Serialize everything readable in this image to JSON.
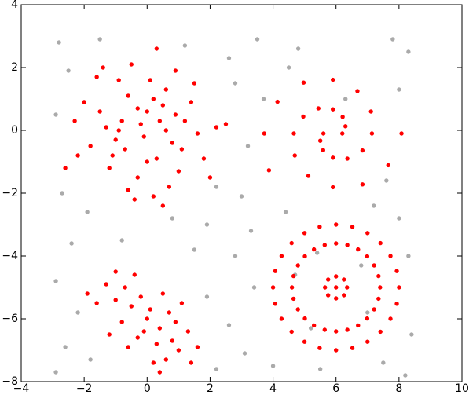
{
  "chart_data": {
    "type": "scatter",
    "xlim": [
      -4,
      10
    ],
    "xticks": [
      {
        "value": -4,
        "label": "−4"
      },
      {
        "value": -2,
        "label": "−2"
      },
      0,
      2,
      4,
      6,
      8,
      10
    ],
    "ylim": [
      -8,
      4
    ],
    "yticks": [
      {
        "value": -8,
        "label": "−8"
      },
      {
        "value": -6,
        "label": "−6"
      },
      {
        "value": -4,
        "label": "−4"
      },
      {
        "value": -2,
        "label": "−2"
      },
      0,
      2,
      4
    ],
    "series": [
      {
        "color": "#aaaaaa",
        "x": [
          -2.8,
          -1.5,
          1.2,
          3.5,
          4.8,
          7.8,
          8.3,
          -2.5,
          2.8,
          3.2,
          3.0,
          2.2,
          -2.7,
          -1.9,
          0.8,
          1.9,
          3.3,
          4.4,
          7.2,
          8.0,
          -2.4,
          -0.8,
          1.5,
          2.8,
          3.4,
          -2.9,
          -2.2,
          -2.6,
          -1.8,
          -2.9,
          1.9,
          2.6,
          2.2,
          3.1,
          4.0,
          5.5,
          7.5,
          8.2,
          8.4,
          8.3,
          4.7,
          5.4,
          6.8,
          7.0,
          5.2,
          3.7,
          4.5,
          8.0,
          7.6,
          6.3,
          -2.9,
          2.6
        ],
        "y": [
          2.8,
          2.9,
          2.7,
          2.9,
          2.6,
          2.9,
          2.5,
          1.9,
          1.5,
          -0.5,
          -2.1,
          -1.8,
          -2.0,
          -2.6,
          -2.8,
          -3.0,
          -3.2,
          -2.6,
          -2.4,
          -2.8,
          -3.6,
          -3.5,
          -3.8,
          -4.0,
          -5.0,
          -4.8,
          -5.8,
          -6.9,
          -7.3,
          -7.7,
          -5.3,
          -6.2,
          -7.6,
          -7.1,
          -7.5,
          -7.6,
          -7.4,
          -7.8,
          -6.5,
          -4.0,
          -4.6,
          -3.9,
          -4.3,
          -5.8,
          -6.3,
          1.0,
          2.0,
          1.3,
          -1.6,
          1.0,
          0.5,
          2.3
        ]
      },
      {
        "color": "#ff0000",
        "x": [
          -0.2,
          0.5,
          -1.0,
          0.3,
          -0.6,
          1.2,
          -1.5,
          0.1,
          -0.3,
          0.8,
          -1.8,
          1.6,
          -0.9,
          0.6,
          -1.2,
          0.2,
          1.0,
          -2.3,
          2.2,
          -0.5,
          0.4,
          -0.7,
          0.0,
          -1.3,
          1.4,
          0.7,
          -0.4,
          -2.6,
          2.5,
          -1.6,
          0.9,
          1.8,
          -2.0,
          0.3,
          -0.1,
          0.6,
          -0.8,
          0.2,
          -0.3,
          1.1,
          -1.1,
          0.0,
          -0.6,
          1.5,
          -2.2,
          2.0,
          -1.4,
          0.5,
          -0.9,
          0.9,
          0,
          -0.5,
          0.4,
          -1.0,
          0.8,
          -1.3,
          1.0,
          -0.2,
          0.3,
          -0.8,
          0.7,
          -1.6,
          1.3,
          -0.4,
          0.2,
          -1.2,
          1.1,
          -0.1,
          0.5,
          -0.7,
          0.6,
          -1.9,
          1.6,
          0.1,
          -0.3,
          0.9,
          -1.0,
          0.4,
          -0.6,
          1.4,
          6.2,
          6.3,
          6.21,
          5.9,
          5.44,
          4.96,
          4.66,
          4.69,
          5.12,
          5.9,
          6.84,
          7.66,
          8.08,
          5.6,
          5.5,
          5.59,
          5.9,
          6.36,
          6.84,
          7.14,
          7.11,
          6.68,
          5.9,
          4.97,
          4.14,
          3.72,
          3.87,
          8,
          7.93,
          7.73,
          7.41,
          7,
          6.52,
          6,
          5.48,
          5,
          4.59,
          4.27,
          4.07,
          4,
          4.07,
          4.27,
          4.59,
          5,
          5.48,
          6,
          6.52,
          7,
          7.41,
          7.73,
          7.93,
          7.4,
          7.35,
          7.21,
          6.99,
          6.7,
          6.36,
          6,
          5.64,
          5.3,
          5.01,
          4.79,
          4.65,
          4.6,
          4.65,
          4.79,
          5.01,
          5.3,
          5.64,
          6,
          6.36,
          6.7,
          6.99,
          7.21,
          7.35,
          6.35,
          6.25,
          6,
          5.75,
          5.65,
          5.75,
          6,
          6.25,
          6
        ],
        "y": [
          0.2,
          0.8,
          -0.3,
          -0.9,
          1.1,
          0.3,
          0.6,
          1.6,
          -1.5,
          -0.4,
          -0.5,
          -0.1,
          1.6,
          1.3,
          -1.2,
          -2.1,
          -1.3,
          0.3,
          0.1,
          2.1,
          0.3,
          -0.6,
          0.6,
          0.1,
          0.9,
          -1.8,
          -2.2,
          -1.2,
          0.2,
          1.7,
          1.9,
          -0.9,
          0.9,
          2.6,
          -0.2,
          0.0,
          0.3,
          1.0,
          0.7,
          -0.6,
          -0.8,
          -1.0,
          -1.9,
          1.5,
          -0.8,
          -1.5,
          2.0,
          -2.4,
          0.0,
          0.5,
          -6,
          -5.6,
          -6.3,
          -5.4,
          -6.7,
          -4.9,
          -7.0,
          -5.3,
          -6.8,
          -6.1,
          -5.8,
          -5.5,
          -6.4,
          -4.6,
          -7.4,
          -6.5,
          -5.5,
          -6.4,
          -5.2,
          -5.0,
          -7.3,
          -5.2,
          -6.9,
          -5.7,
          -6.6,
          -6.1,
          -4.5,
          -7.7,
          -6.9,
          -7.4,
          -0.1,
          0.13,
          0.43,
          0.67,
          0.7,
          0.44,
          -0.1,
          -0.8,
          -1.45,
          -1.81,
          -1.72,
          -1.11,
          -0.1,
          -0.1,
          -0.33,
          -0.63,
          -0.87,
          -0.9,
          -0.64,
          -0.1,
          0.6,
          1.25,
          1.61,
          1.52,
          0.91,
          -0.1,
          -1.27,
          -5,
          -4.48,
          -4,
          -3.59,
          -3.27,
          -3.07,
          -3,
          -3.07,
          -3.27,
          -3.59,
          -4,
          -4.48,
          -5,
          -5.52,
          -6,
          -6.41,
          -6.73,
          -6.93,
          -7,
          -6.93,
          -6.73,
          -6.41,
          -6,
          -5.52,
          -5,
          -4.64,
          -4.3,
          -4.01,
          -3.79,
          -3.65,
          -3.6,
          -3.65,
          -3.79,
          -4.01,
          -4.3,
          -4.64,
          -5,
          -5.36,
          -5.7,
          -5.99,
          -6.21,
          -6.35,
          -6.4,
          -6.35,
          -6.21,
          -5.99,
          -5.7,
          -5.36,
          -5,
          -4.75,
          -4.65,
          -4.75,
          -5,
          -5.25,
          -5.35,
          -5.25,
          -5
        ]
      }
    ]
  }
}
